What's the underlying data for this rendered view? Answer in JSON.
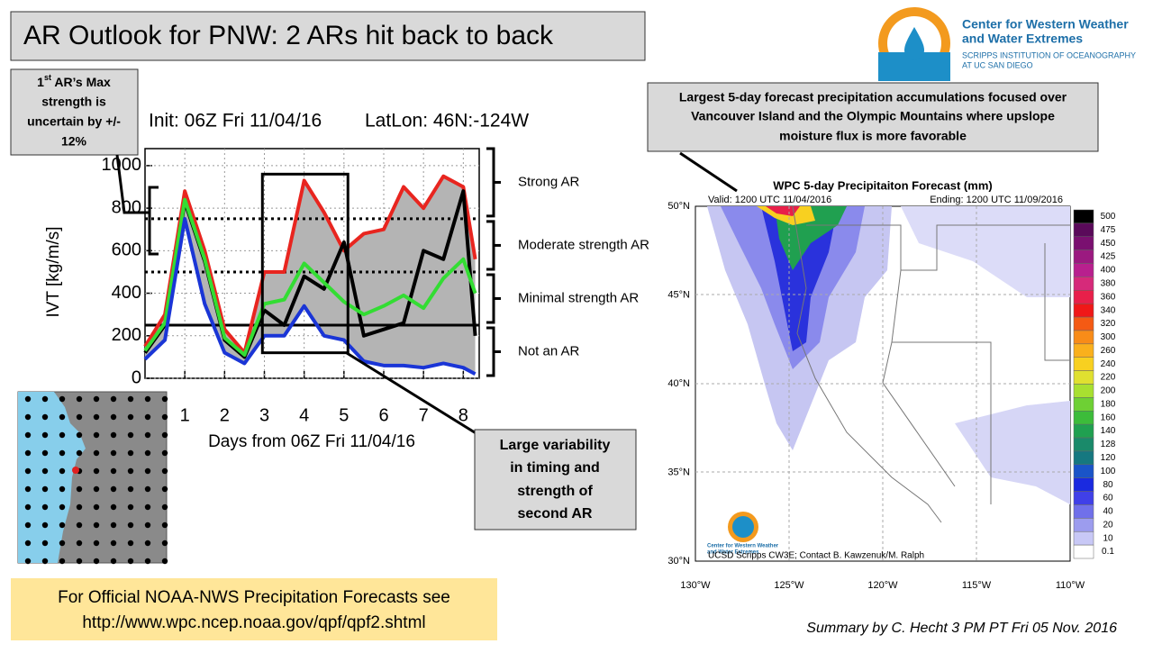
{
  "slide": {
    "title": "AR Outlook for PNW: 2 ARs hit back to back",
    "logo": {
      "line1": "Center for Western Weather",
      "line2": "and Water Extremes",
      "line3": "SCRIPPS INSTITUTION OF OCEANOGRAPHY",
      "line4": "AT UC SAN DIEGO"
    },
    "max_strength": {
      "number": "1",
      "suffix": "st",
      "line1": " AR’s Max",
      "line2": "strength is",
      "line3": "uncertain by +/-",
      "line4": "12%"
    },
    "variability": [
      "Large variability",
      "in timing and",
      "strength of",
      "second AR"
    ],
    "largest": [
      "Largest  5-day forecast precipitation accumulations focused over",
      "Vancouver Island and the Olympic Mountains where upslope",
      "moisture flux is more favorable"
    ],
    "official": [
      "For Official NOAA-NWS Precipitation Forecasts see",
      "http://www.wpc.ncep.noaa.gov/qpf/qpf2.shtml"
    ],
    "summary": "Summary by C. Hecht 3 PM PT Fri 05 Nov. 2016"
  },
  "chart_data": {
    "type": "line",
    "title": "Init: 06Z Fri 11/04/16",
    "subtitle": "LatLon: 46N:-124W",
    "x_label": "Days from 06Z Fri 11/04/16",
    "y_label": "IVT [kg/m/s]",
    "x": [
      0,
      0.5,
      1,
      1.5,
      2,
      2.5,
      3,
      3.5,
      4,
      4.5,
      5,
      5.5,
      6,
      6.5,
      7,
      7.5,
      8,
      8.3
    ],
    "xlim": [
      0,
      8.4
    ],
    "xticks": [
      1,
      2,
      3,
      4,
      5,
      6,
      7,
      8
    ],
    "ylim": [
      0,
      1080
    ],
    "yticks": [
      0,
      200,
      400,
      600,
      800,
      1000
    ],
    "envelope_color": "#b4b4b4",
    "series": [
      {
        "color": "#e8251f",
        "values": [
          150,
          300,
          880,
          600,
          230,
          120,
          500,
          500,
          930,
          780,
          600,
          680,
          700,
          900,
          800,
          950,
          900,
          560
        ]
      },
      {
        "color": "#000000",
        "values": [
          120,
          250,
          830,
          550,
          180,
          100,
          320,
          250,
          480,
          420,
          640,
          200,
          230,
          260,
          600,
          560,
          880,
          200
        ]
      },
      {
        "color": "#33dd33",
        "values": [
          130,
          260,
          840,
          560,
          190,
          110,
          350,
          370,
          540,
          450,
          360,
          300,
          340,
          390,
          330,
          470,
          560,
          400
        ]
      },
      {
        "color": "#1a35d6",
        "values": [
          90,
          180,
          750,
          350,
          120,
          70,
          200,
          200,
          340,
          200,
          180,
          80,
          60,
          60,
          50,
          70,
          50,
          20
        ]
      }
    ],
    "thresholds": [
      {
        "value": 750,
        "style": "dotted"
      },
      {
        "value": 500,
        "style": "dotted"
      },
      {
        "value": 250,
        "style": "solid"
      }
    ],
    "categories_of_ar": [
      "Strong AR",
      "Moderate strength AR",
      "Minimal strength AR",
      "Not an AR"
    ],
    "highlight_box": {
      "x": [
        2.95,
        5.1
      ],
      "y": [
        120,
        960
      ]
    }
  },
  "map": {
    "title": "WPC 5-day Precipitaiton Forecast (mm)",
    "valid": "Valid: 1200 UTC 11/04/2016",
    "ending": "Ending: 1200 UTC 11/09/2016",
    "credit": "UCSD Scripps CW3E; Contact B. Kawzenuk/M. Ralph",
    "logo_text": [
      "Center for Western Weather",
      "and Water Extremes"
    ],
    "lat_labels": [
      "50°N",
      "45°N",
      "40°N",
      "35°N",
      "30°N"
    ],
    "lon_labels": [
      "130°W",
      "125°W",
      "120°W",
      "115°W",
      "110°W"
    ],
    "colorbar": {
      "labels": [
        "500",
        "475",
        "450",
        "425",
        "400",
        "380",
        "360",
        "340",
        "320",
        "300",
        "260",
        "240",
        "220",
        "200",
        "180",
        "160",
        "140",
        "128",
        "120",
        "100",
        "80",
        "60",
        "40",
        "20",
        "10",
        "0.1"
      ],
      "colors": [
        "#000000",
        "#5a0a5a",
        "#7a1070",
        "#9b1a80",
        "#b8208e",
        "#d62a7a",
        "#e8204a",
        "#f01818",
        "#f45a14",
        "#f88c18",
        "#fab01c",
        "#f8d020",
        "#e0e030",
        "#a8e030",
        "#6ed034",
        "#3cbc3a",
        "#20a050",
        "#1a8a6a",
        "#167880",
        "#1a54c8",
        "#1a2ae0",
        "#4040e8",
        "#7070ea",
        "#9c9cee",
        "#c8c8f6",
        "#ffffff"
      ]
    }
  }
}
